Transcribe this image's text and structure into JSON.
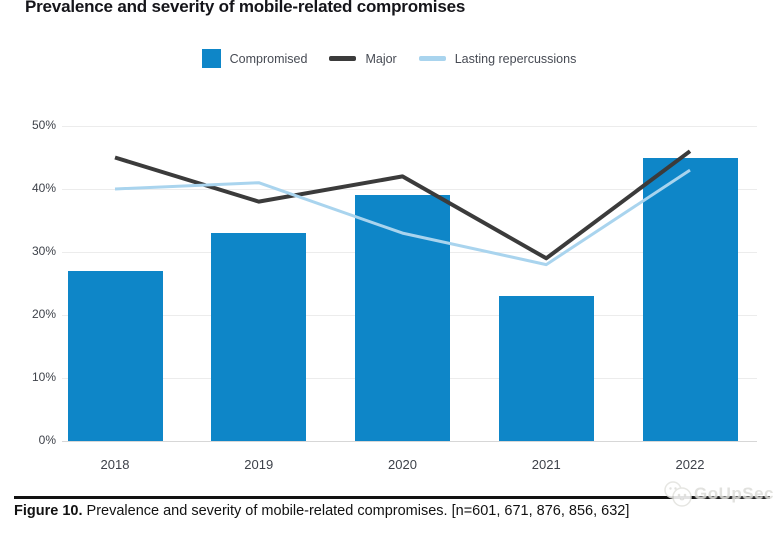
{
  "page": {
    "title": "Prevalence and severity of mobile-related compromises"
  },
  "legend": {
    "items": [
      {
        "label": "Compromised",
        "swatch": "square",
        "color": "#0e86c8"
      },
      {
        "label": "Major",
        "swatch": "line",
        "color": "#3b3b3b"
      },
      {
        "label": "Lasting repercussions",
        "swatch": "line",
        "color": "#a9d4ee"
      }
    ]
  },
  "chart_data": {
    "type": "bar",
    "title": "Prevalence and severity of mobile-related compromises",
    "categories": [
      "2018",
      "2019",
      "2020",
      "2021",
      "2022"
    ],
    "series": [
      {
        "name": "Compromised",
        "type": "bar",
        "color": "#0e86c8",
        "values": [
          27,
          33,
          39,
          23,
          45
        ]
      },
      {
        "name": "Major",
        "type": "line",
        "color": "#3b3b3b",
        "values": [
          45,
          38,
          42,
          29,
          46
        ]
      },
      {
        "name": "Lasting repercussions",
        "type": "line",
        "color": "#a9d4ee",
        "values": [
          40,
          41,
          33,
          28,
          43
        ]
      }
    ],
    "xlabel": "",
    "ylabel": "",
    "ylim": [
      0,
      50
    ],
    "yticks": [
      "0%",
      "10%",
      "20%",
      "30%",
      "40%",
      "50%"
    ],
    "grid": true,
    "legend_position": "top"
  },
  "caption": {
    "prefix": "Figure 10.",
    "text": " Prevalence and severity of mobile-related compromises. [n=601, 671, 876, 856, 632]"
  },
  "watermark": {
    "text": "GoUpSec"
  },
  "colors": {
    "bar_blue": "#0e86c8",
    "major_line": "#3b3b3b",
    "lasting_line": "#a9d4ee",
    "gridline": "#ececec",
    "axis_text": "#3e424a",
    "caption_rule": "#121212"
  }
}
